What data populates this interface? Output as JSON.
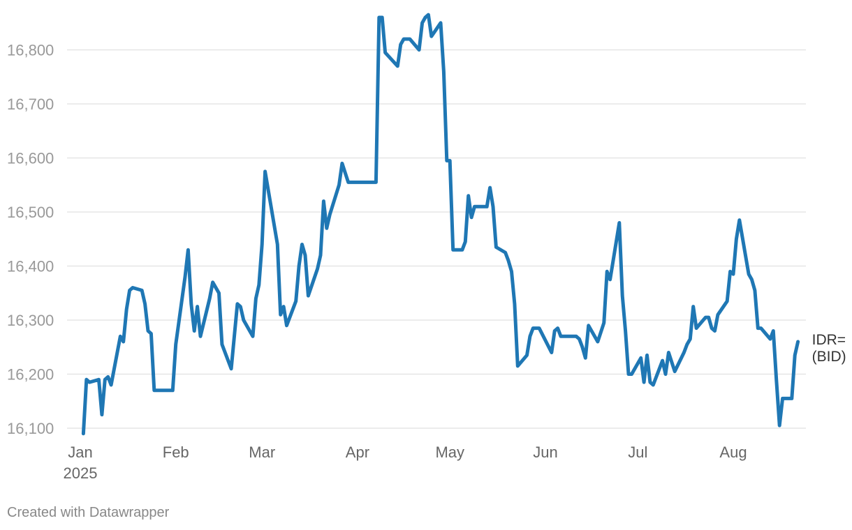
{
  "chart_data": {
    "type": "line",
    "ylim": [
      16090,
      16870
    ],
    "yticks": [
      16100,
      16200,
      16300,
      16400,
      16500,
      16600,
      16700,
      16800
    ],
    "ytick_labels": [
      "16,100",
      "16,200",
      "16,300",
      "16,400",
      "16,500",
      "16,600",
      "16,700",
      "16,800"
    ],
    "xlim": [
      "2024-12-27",
      "2025-08-24"
    ],
    "xticks": [
      {
        "date": "2025-01-01",
        "label": "Jan",
        "sublabel": "2025"
      },
      {
        "date": "2025-02-01",
        "label": "Feb",
        "sublabel": ""
      },
      {
        "date": "2025-03-01",
        "label": "Mar",
        "sublabel": ""
      },
      {
        "date": "2025-04-01",
        "label": "Apr",
        "sublabel": ""
      },
      {
        "date": "2025-05-01",
        "label": "May",
        "sublabel": ""
      },
      {
        "date": "2025-06-01",
        "label": "Jun",
        "sublabel": ""
      },
      {
        "date": "2025-07-01",
        "label": "Jul",
        "sublabel": ""
      },
      {
        "date": "2025-08-01",
        "label": "Aug",
        "sublabel": ""
      }
    ],
    "grid": true,
    "colors": {
      "line": "#1f77b4",
      "grid": "#e5e5e5"
    },
    "series": [
      {
        "name": "IDR= (BID)",
        "label_lines": [
          "IDR=",
          "(BID)"
        ],
        "points": [
          [
            "2025-01-02",
            16090
          ],
          [
            "2025-01-03",
            16190
          ],
          [
            "2025-01-04",
            16185
          ],
          [
            "2025-01-07",
            16190
          ],
          [
            "2025-01-08",
            16125
          ],
          [
            "2025-01-09",
            16190
          ],
          [
            "2025-01-10",
            16195
          ],
          [
            "2025-01-11",
            16180
          ],
          [
            "2025-01-14",
            16270
          ],
          [
            "2025-01-15",
            16260
          ],
          [
            "2025-01-16",
            16320
          ],
          [
            "2025-01-17",
            16355
          ],
          [
            "2025-01-18",
            16360
          ],
          [
            "2025-01-21",
            16355
          ],
          [
            "2025-01-22",
            16330
          ],
          [
            "2025-01-23",
            16280
          ],
          [
            "2025-01-24",
            16275
          ],
          [
            "2025-01-25",
            16170
          ],
          [
            "2025-01-31",
            16170
          ],
          [
            "2025-02-01",
            16255
          ],
          [
            "2025-02-04",
            16380
          ],
          [
            "2025-02-05",
            16430
          ],
          [
            "2025-02-06",
            16330
          ],
          [
            "2025-02-07",
            16280
          ],
          [
            "2025-02-08",
            16325
          ],
          [
            "2025-02-09",
            16270
          ],
          [
            "2025-02-12",
            16340
          ],
          [
            "2025-02-13",
            16370
          ],
          [
            "2025-02-15",
            16350
          ],
          [
            "2025-02-16",
            16255
          ],
          [
            "2025-02-19",
            16210
          ],
          [
            "2025-02-21",
            16330
          ],
          [
            "2025-02-22",
            16325
          ],
          [
            "2025-02-23",
            16300
          ],
          [
            "2025-02-26",
            16270
          ],
          [
            "2025-02-27",
            16340
          ],
          [
            "2025-02-28",
            16365
          ],
          [
            "2025-03-01",
            16440
          ],
          [
            "2025-03-02",
            16575
          ],
          [
            "2025-03-06",
            16440
          ],
          [
            "2025-03-07",
            16310
          ],
          [
            "2025-03-08",
            16325
          ],
          [
            "2025-03-09",
            16290
          ],
          [
            "2025-03-12",
            16335
          ],
          [
            "2025-03-13",
            16400
          ],
          [
            "2025-03-14",
            16440
          ],
          [
            "2025-03-15",
            16420
          ],
          [
            "2025-03-16",
            16345
          ],
          [
            "2025-03-19",
            16395
          ],
          [
            "2025-03-20",
            16420
          ],
          [
            "2025-03-21",
            16520
          ],
          [
            "2025-03-22",
            16470
          ],
          [
            "2025-03-23",
            16495
          ],
          [
            "2025-03-26",
            16550
          ],
          [
            "2025-03-27",
            16590
          ],
          [
            "2025-03-29",
            16555
          ],
          [
            "2025-04-07",
            16555
          ],
          [
            "2025-04-08",
            16860
          ],
          [
            "2025-04-09",
            16860
          ],
          [
            "2025-04-10",
            16795
          ],
          [
            "2025-04-14",
            16770
          ],
          [
            "2025-04-15",
            16810
          ],
          [
            "2025-04-16",
            16820
          ],
          [
            "2025-04-18",
            16820
          ],
          [
            "2025-04-21",
            16800
          ],
          [
            "2025-04-22",
            16850
          ],
          [
            "2025-04-23",
            16860
          ],
          [
            "2025-04-24",
            16865
          ],
          [
            "2025-04-25",
            16825
          ],
          [
            "2025-04-28",
            16850
          ],
          [
            "2025-04-29",
            16760
          ],
          [
            "2025-04-30",
            16595
          ],
          [
            "2025-05-01",
            16595
          ],
          [
            "2025-05-02",
            16430
          ],
          [
            "2025-05-05",
            16430
          ],
          [
            "2025-05-06",
            16445
          ],
          [
            "2025-05-07",
            16530
          ],
          [
            "2025-05-08",
            16490
          ],
          [
            "2025-05-09",
            16510
          ],
          [
            "2025-05-13",
            16510
          ],
          [
            "2025-05-14",
            16545
          ],
          [
            "2025-05-15",
            16510
          ],
          [
            "2025-05-16",
            16435
          ],
          [
            "2025-05-19",
            16425
          ],
          [
            "2025-05-20",
            16410
          ],
          [
            "2025-05-21",
            16390
          ],
          [
            "2025-05-22",
            16330
          ],
          [
            "2025-05-23",
            16215
          ],
          [
            "2025-05-26",
            16235
          ],
          [
            "2025-05-27",
            16270
          ],
          [
            "2025-05-28",
            16285
          ],
          [
            "2025-05-30",
            16285
          ],
          [
            "2025-06-03",
            16240
          ],
          [
            "2025-06-04",
            16280
          ],
          [
            "2025-06-05",
            16285
          ],
          [
            "2025-06-06",
            16270
          ],
          [
            "2025-06-11",
            16270
          ],
          [
            "2025-06-12",
            16265
          ],
          [
            "2025-06-13",
            16250
          ],
          [
            "2025-06-14",
            16230
          ],
          [
            "2025-06-15",
            16290
          ],
          [
            "2025-06-18",
            16260
          ],
          [
            "2025-06-20",
            16295
          ],
          [
            "2025-06-21",
            16390
          ],
          [
            "2025-06-22",
            16375
          ],
          [
            "2025-06-25",
            16480
          ],
          [
            "2025-06-26",
            16345
          ],
          [
            "2025-06-27",
            16280
          ],
          [
            "2025-06-28",
            16200
          ],
          [
            "2025-06-29",
            16200
          ],
          [
            "2025-07-02",
            16230
          ],
          [
            "2025-07-03",
            16185
          ],
          [
            "2025-07-04",
            16235
          ],
          [
            "2025-07-05",
            16185
          ],
          [
            "2025-07-06",
            16180
          ],
          [
            "2025-07-09",
            16225
          ],
          [
            "2025-07-10",
            16200
          ],
          [
            "2025-07-11",
            16240
          ],
          [
            "2025-07-13",
            16205
          ],
          [
            "2025-07-16",
            16240
          ],
          [
            "2025-07-17",
            16255
          ],
          [
            "2025-07-18",
            16265
          ],
          [
            "2025-07-19",
            16325
          ],
          [
            "2025-07-20",
            16285
          ],
          [
            "2025-07-23",
            16305
          ],
          [
            "2025-07-24",
            16305
          ],
          [
            "2025-07-25",
            16285
          ],
          [
            "2025-07-26",
            16280
          ],
          [
            "2025-07-27",
            16310
          ],
          [
            "2025-07-30",
            16335
          ],
          [
            "2025-07-31",
            16390
          ],
          [
            "2025-08-01",
            16385
          ],
          [
            "2025-08-02",
            16450
          ],
          [
            "2025-08-03",
            16485
          ],
          [
            "2025-08-06",
            16385
          ],
          [
            "2025-08-07",
            16375
          ],
          [
            "2025-08-08",
            16355
          ],
          [
            "2025-08-09",
            16285
          ],
          [
            "2025-08-10",
            16285
          ],
          [
            "2025-08-13",
            16265
          ],
          [
            "2025-08-14",
            16280
          ],
          [
            "2025-08-15",
            16190
          ],
          [
            "2025-08-16",
            16105
          ],
          [
            "2025-08-17",
            16155
          ],
          [
            "2025-08-20",
            16155
          ],
          [
            "2025-08-21",
            16235
          ],
          [
            "2025-08-22",
            16260
          ]
        ]
      }
    ]
  },
  "footer": {
    "credit": "Created with Datawrapper"
  }
}
